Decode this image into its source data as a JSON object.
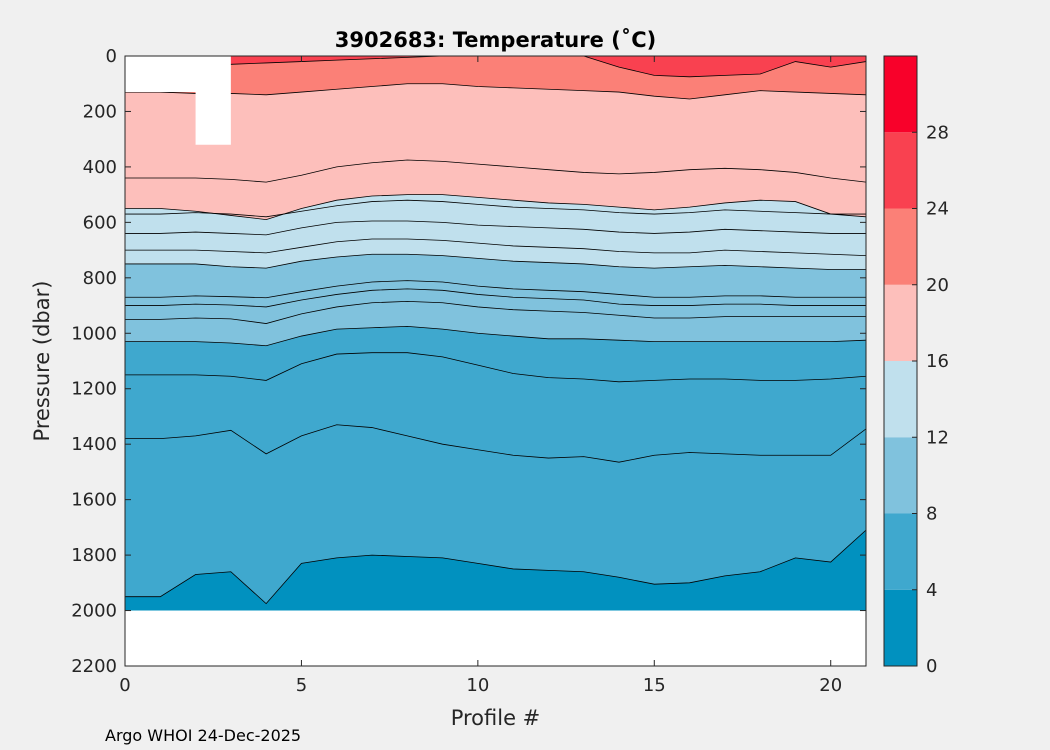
{
  "chart_data": {
    "type": "contour",
    "title": "3902683:  Temperature (˚C)",
    "xlabel": "Profile #",
    "ylabel": "Pressure (dbar)",
    "xlim": [
      0,
      21
    ],
    "ylim": [
      2200,
      0
    ],
    "xticks": [
      0,
      5,
      10,
      15,
      20
    ],
    "yticks": [
      0,
      200,
      400,
      600,
      800,
      1000,
      1200,
      1400,
      1600,
      1800,
      2000,
      2200
    ],
    "colorbar": {
      "range": [
        0,
        32
      ],
      "ticks": [
        0,
        4,
        8,
        12,
        16,
        20,
        24,
        28
      ],
      "bands": [
        {
          "min": 0,
          "max": 4,
          "color": "#0191bf"
        },
        {
          "min": 4,
          "max": 8,
          "color": "#3fa8ce"
        },
        {
          "min": 8,
          "max": 12,
          "color": "#80c2dd"
        },
        {
          "min": 12,
          "max": 16,
          "color": "#c0e0ed"
        },
        {
          "min": 16,
          "max": 20,
          "color": "#fdbfbb"
        },
        {
          "min": 20,
          "max": 24,
          "color": "#fb8077"
        },
        {
          "min": 24,
          "max": 28,
          "color": "#f94150"
        },
        {
          "min": 28,
          "max": 32,
          "color": "#f8012a"
        }
      ]
    },
    "profiles": [
      0,
      1,
      2,
      3,
      4,
      5,
      6,
      7,
      8,
      9,
      10,
      11,
      12,
      13,
      14,
      15,
      16,
      17,
      18,
      19,
      20,
      21
    ],
    "data_bottom": 2000,
    "data_start_pressure": [
      130,
      130,
      320,
      0,
      0,
      0,
      0,
      0,
      0,
      0,
      0,
      0,
      0,
      0,
      0,
      0,
      0,
      0,
      0,
      0,
      0,
      0
    ],
    "isotherms": [
      {
        "level": 4,
        "pressure": [
          1950,
          1950,
          1870,
          1860,
          1975,
          1830,
          1810,
          1800,
          1805,
          1810,
          1830,
          1850,
          1855,
          1860,
          1880,
          1905,
          1900,
          1875,
          1860,
          1810,
          1825,
          1710
        ]
      },
      {
        "level": 6,
        "pressure": [
          1380,
          1380,
          1370,
          1350,
          1435,
          1370,
          1330,
          1340,
          1370,
          1400,
          1420,
          1440,
          1450,
          1445,
          1465,
          1440,
          1430,
          1435,
          1440,
          1440,
          1440,
          1345
        ]
      },
      {
        "level": 7,
        "pressure": [
          1150,
          1150,
          1150,
          1155,
          1170,
          1110,
          1075,
          1070,
          1070,
          1085,
          1115,
          1145,
          1160,
          1165,
          1175,
          1170,
          1165,
          1165,
          1170,
          1170,
          1165,
          1155
        ]
      },
      {
        "level": 8,
        "pressure": [
          1030,
          1030,
          1030,
          1035,
          1045,
          1010,
          985,
          980,
          975,
          985,
          1000,
          1010,
          1020,
          1020,
          1025,
          1030,
          1030,
          1030,
          1030,
          1030,
          1030,
          1025
        ]
      },
      {
        "level": 9,
        "pressure": [
          950,
          950,
          945,
          948,
          965,
          930,
          905,
          890,
          885,
          890,
          905,
          915,
          920,
          925,
          935,
          945,
          945,
          940,
          940,
          940,
          940,
          940
        ]
      },
      {
        "level": 10,
        "pressure": [
          900,
          900,
          895,
          898,
          905,
          880,
          860,
          845,
          840,
          845,
          860,
          870,
          875,
          880,
          895,
          900,
          900,
          895,
          895,
          900,
          900,
          900
        ]
      },
      {
        "level": 11,
        "pressure": [
          870,
          870,
          865,
          868,
          872,
          850,
          830,
          815,
          810,
          815,
          830,
          840,
          845,
          850,
          860,
          870,
          870,
          865,
          865,
          870,
          870,
          870
        ]
      },
      {
        "level": 12,
        "pressure": [
          750,
          750,
          750,
          760,
          765,
          740,
          725,
          715,
          715,
          720,
          730,
          740,
          745,
          750,
          760,
          765,
          760,
          755,
          760,
          765,
          770,
          770
        ]
      },
      {
        "level": 13,
        "pressure": [
          700,
          700,
          700,
          705,
          710,
          690,
          670,
          660,
          660,
          665,
          675,
          685,
          690,
          695,
          705,
          710,
          710,
          700,
          705,
          710,
          715,
          720
        ]
      },
      {
        "level": 14,
        "pressure": [
          640,
          640,
          635,
          640,
          645,
          620,
          600,
          595,
          595,
          600,
          610,
          615,
          620,
          625,
          635,
          640,
          635,
          625,
          630,
          635,
          640,
          640
        ]
      },
      {
        "level": 15,
        "pressure": [
          570,
          570,
          565,
          570,
          580,
          560,
          540,
          525,
          520,
          525,
          535,
          545,
          550,
          555,
          565,
          570,
          565,
          555,
          560,
          565,
          570,
          570
        ]
      },
      {
        "level": 16,
        "pressure": [
          550,
          550,
          560,
          575,
          590,
          550,
          520,
          505,
          500,
          500,
          510,
          520,
          530,
          535,
          545,
          555,
          545,
          530,
          520,
          525,
          570,
          580
        ]
      },
      {
        "level": 17,
        "pressure": [
          440,
          440,
          440,
          445,
          455,
          430,
          400,
          385,
          375,
          380,
          390,
          400,
          410,
          420,
          425,
          420,
          410,
          405,
          410,
          420,
          440,
          455
        ]
      },
      {
        "level": 20,
        "pressure": [
          130,
          130,
          135,
          135,
          140,
          130,
          120,
          110,
          100,
          100,
          110,
          115,
          120,
          125,
          130,
          145,
          155,
          140,
          125,
          130,
          135,
          140
        ]
      },
      {
        "level": 24,
        "pressure": [
          30,
          30,
          30,
          30,
          25,
          20,
          15,
          10,
          5,
          0,
          0,
          0,
          0,
          0,
          40,
          70,
          75,
          70,
          65,
          20,
          40,
          20
        ]
      }
    ]
  },
  "footer": {
    "text": "Argo WHOI 24-Dec-2025"
  }
}
